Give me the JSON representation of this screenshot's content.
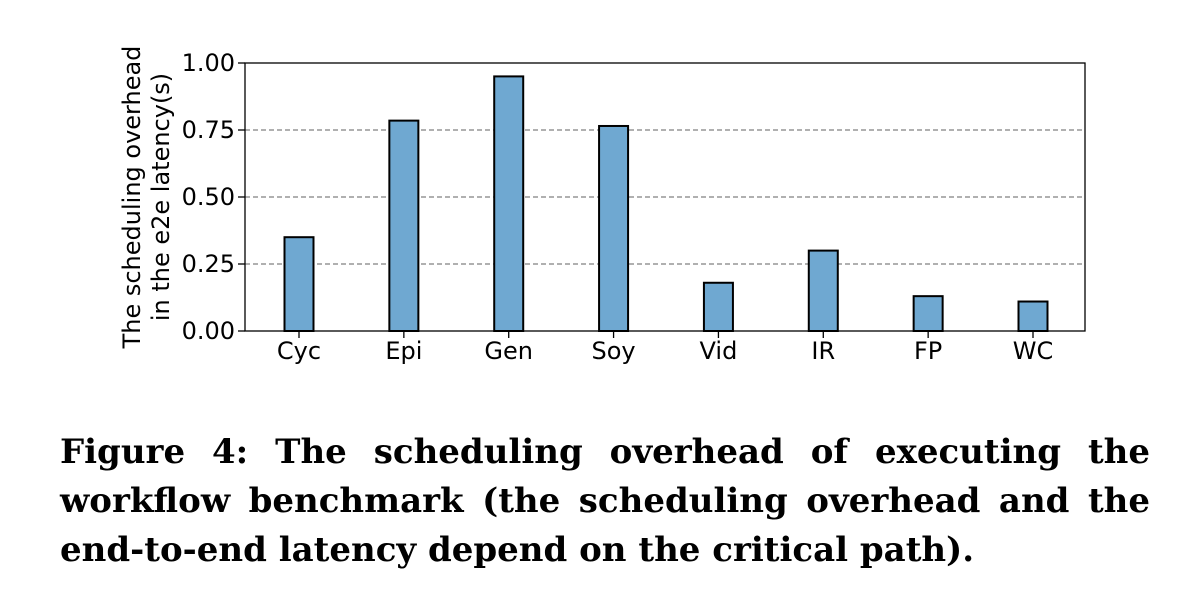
{
  "chart_data": {
    "type": "bar",
    "categories": [
      "Cyc",
      "Epi",
      "Gen",
      "Soy",
      "Vid",
      "IR",
      "FP",
      "WC"
    ],
    "values": [
      0.35,
      0.785,
      0.95,
      0.765,
      0.18,
      0.3,
      0.13,
      0.11
    ],
    "ylabel_lines": [
      "The scheduling overhead",
      "in the e2e latency(s)"
    ],
    "xlabel": "",
    "ylim": [
      0,
      1.0
    ],
    "yticks": [
      "0.00",
      "0.25",
      "0.50",
      "0.75",
      "1.00"
    ],
    "ytick_values": [
      0,
      0.25,
      0.5,
      0.75,
      1.0
    ],
    "grid": "horizontal dashed at 0.25, 0.50, 0.75",
    "bar_color": "#6fa8d1"
  },
  "caption": "Figure 4:  The scheduling overhead of executing the workflow benchmark (the scheduling overhead and the end-to-end latency depend on the critical path)."
}
